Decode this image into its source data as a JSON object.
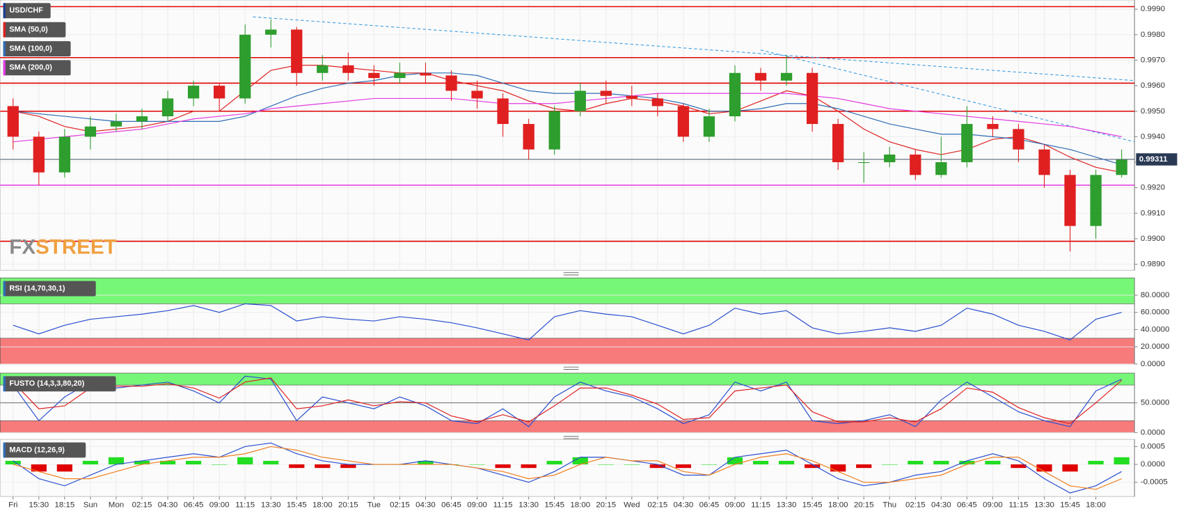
{
  "chart_data": [
    {
      "type": "candlestick",
      "title": "USD/CHF",
      "title_color": "#1a3d8f",
      "up_color": "#2e9e2e",
      "down_color": "#e02020",
      "watermark": [
        "FX",
        "STREET"
      ],
      "categories": [
        "Fri",
        "15:30",
        "18:15",
        "Sun",
        "Mon",
        "02:15",
        "04:30",
        "06:45",
        "09:00",
        "11:15",
        "13:30",
        "15:45",
        "18:00",
        "20:15",
        "Tue",
        "02:15",
        "04:30",
        "06:45",
        "09:00",
        "11:15",
        "13:30",
        "15:45",
        "18:00",
        "20:15",
        "Wed",
        "02:15",
        "04:30",
        "06:45",
        "09:00",
        "11:15",
        "13:30",
        "15:45",
        "18:00",
        "20:15",
        "Thu",
        "02:15",
        "04:30",
        "06:45",
        "09:00",
        "11:15",
        "13:30",
        "15:45",
        "18:00",
        null
      ],
      "open": [
        0.9952,
        0.994,
        0.9926,
        0.994,
        0.9944,
        0.9946,
        0.9948,
        0.9955,
        0.996,
        0.9955,
        0.998,
        0.9982,
        0.9965,
        0.9968,
        0.9965,
        0.9963,
        0.9965,
        0.9964,
        0.9958,
        0.9955,
        0.9945,
        0.9935,
        0.995,
        0.9958,
        0.9956,
        0.9955,
        0.9952,
        0.994,
        0.9948,
        0.9965,
        0.9962,
        0.9965,
        0.9945,
        0.993,
        0.993,
        0.9933,
        0.9925,
        0.993,
        0.9945,
        0.9943,
        0.9935,
        0.9925,
        0.9905,
        0.9925
      ],
      "high": [
        0.9955,
        0.9942,
        0.9943,
        0.9948,
        0.9949,
        0.9951,
        0.9958,
        0.9962,
        0.9961,
        0.9984,
        0.9986,
        0.9983,
        0.9972,
        0.9973,
        0.9968,
        0.9969,
        0.9969,
        0.9966,
        0.9962,
        0.9957,
        0.9947,
        0.9952,
        0.9961,
        0.9962,
        0.996,
        0.9957,
        0.9953,
        0.9951,
        0.9968,
        0.9967,
        0.9972,
        0.9967,
        0.9947,
        0.9934,
        0.9936,
        0.9935,
        0.994,
        0.9952,
        0.9948,
        0.9945,
        0.9937,
        0.9927,
        0.9927,
        0.9935
      ],
      "low": [
        0.9935,
        0.9921,
        0.9924,
        0.9935,
        0.9942,
        0.9943,
        0.9946,
        0.9952,
        0.995,
        0.9953,
        0.9975,
        0.996,
        0.9962,
        0.9962,
        0.996,
        0.9961,
        0.9961,
        0.9954,
        0.9951,
        0.994,
        0.9931,
        0.9933,
        0.9948,
        0.9953,
        0.9952,
        0.9948,
        0.9938,
        0.9938,
        0.9946,
        0.9958,
        0.996,
        0.9942,
        0.9927,
        0.9922,
        0.9928,
        0.9923,
        0.9924,
        0.9928,
        0.994,
        0.993,
        0.992,
        0.9895,
        0.99,
        0.9924
      ],
      "close": [
        0.994,
        0.9926,
        0.994,
        0.9944,
        0.9946,
        0.9948,
        0.9955,
        0.996,
        0.9955,
        0.998,
        0.9982,
        0.9965,
        0.9968,
        0.9965,
        0.9963,
        0.9965,
        0.9964,
        0.9958,
        0.9955,
        0.9945,
        0.9935,
        0.995,
        0.9958,
        0.9956,
        0.9955,
        0.9952,
        0.994,
        0.9948,
        0.9965,
        0.9962,
        0.9965,
        0.9945,
        0.993,
        0.993,
        0.9933,
        0.9925,
        0.993,
        0.9945,
        0.9943,
        0.9935,
        0.9925,
        0.9905,
        0.9925,
        0.9931
      ],
      "series": [
        {
          "name": "SMA (50,0)",
          "color": "#e02020",
          "values": [
            0.995,
            0.9948,
            0.9944,
            0.9942,
            0.9943,
            0.9944,
            0.9946,
            0.995,
            0.995,
            0.9958,
            0.9966,
            0.9968,
            0.9968,
            0.9967,
            0.9966,
            0.9965,
            0.9965,
            0.9962,
            0.996,
            0.9958,
            0.9954,
            0.9951,
            0.995,
            0.9953,
            0.9955,
            0.9954,
            0.9952,
            0.9949,
            0.995,
            0.9954,
            0.9958,
            0.9956,
            0.995,
            0.9943,
            0.9938,
            0.9935,
            0.9933,
            0.9935,
            0.9939,
            0.994,
            0.9937,
            0.9932,
            0.9928,
            0.9926
          ]
        },
        {
          "name": "SMA (100,0)",
          "color": "#2f6db5",
          "values": [
            0.995,
            0.9949,
            0.9948,
            0.9947,
            0.9946,
            0.9946,
            0.9946,
            0.9946,
            0.9946,
            0.9948,
            0.9952,
            0.9956,
            0.9959,
            0.9961,
            0.9962,
            0.9964,
            0.9965,
            0.9965,
            0.9964,
            0.9961,
            0.9958,
            0.9957,
            0.9957,
            0.9957,
            0.9956,
            0.9955,
            0.9953,
            0.995,
            0.995,
            0.9951,
            0.9953,
            0.9953,
            0.9951,
            0.9948,
            0.9945,
            0.9943,
            0.9941,
            0.9941,
            0.994,
            0.9939,
            0.9937,
            0.9935,
            0.9932,
            0.9929
          ]
        },
        {
          "name": "SMA (200,0)",
          "color": "#e23be2",
          "values": [
            0.9938,
            0.9939,
            0.994,
            0.9941,
            0.9942,
            0.9943,
            0.9945,
            0.9947,
            0.9948,
            0.9949,
            0.9951,
            0.9952,
            0.9953,
            0.9954,
            0.9955,
            0.9955,
            0.9955,
            0.9955,
            0.9954,
            0.9953,
            0.9953,
            0.9953,
            0.9954,
            0.9955,
            0.9956,
            0.9957,
            0.9957,
            0.9957,
            0.9957,
            0.9957,
            0.9957,
            0.9956,
            0.9955,
            0.9953,
            0.9951,
            0.995,
            0.9949,
            0.9948,
            0.9947,
            0.9946,
            0.9945,
            0.9944,
            0.9942,
            0.994
          ]
        }
      ],
      "levels": [
        {
          "value": 0.9991,
          "color": "#e00000"
        },
        {
          "value": 0.9971,
          "color": "#e00000"
        },
        {
          "value": 0.9961,
          "color": "#e00000"
        },
        {
          "value": 0.995,
          "color": "#e00000"
        },
        {
          "value": 0.9921,
          "color": "#e23be2"
        },
        {
          "value": 0.9899,
          "color": "#e00000"
        }
      ],
      "trendlines": [
        {
          "x": [
            9.3,
            43.5
          ],
          "y": [
            0.9987,
            0.9962
          ],
          "color": "#3b9de0"
        },
        {
          "x": [
            29,
            43.5
          ],
          "y": [
            0.9974,
            0.9938
          ],
          "color": "#3b9de0"
        }
      ],
      "last_price": 0.99311,
      "ylim": [
        0.98876,
        0.99936
      ],
      "yticks": [
        {
          "value": 0.989,
          "label": "0.9890"
        },
        {
          "value": 0.99,
          "label": "0.9900"
        },
        {
          "value": 0.991,
          "label": "0.9910"
        },
        {
          "value": 0.992,
          "label": "0.9920"
        },
        {
          "value": 0.993,
          "label": "0.9930"
        },
        {
          "value": 0.994,
          "label": "0.9940"
        },
        {
          "value": 0.995,
          "label": "0.9950"
        },
        {
          "value": 0.996,
          "label": "0.9960"
        },
        {
          "value": 0.997,
          "label": "0.9970"
        },
        {
          "value": 0.998,
          "label": "0.9980"
        },
        {
          "value": 0.999,
          "label": "0.9990"
        }
      ],
      "grid": true
    },
    {
      "type": "line",
      "title": "RSI (14,70,30,1)",
      "title_color": "#2f6db5",
      "bands": [
        {
          "from": 70,
          "to": 100,
          "color": "#77f777"
        },
        {
          "from": 0,
          "to": 30,
          "color": "#f77b7b"
        }
      ],
      "series": [
        {
          "name": "RSI",
          "color": "#2a4fd0",
          "values": [
            45,
            35,
            45,
            52,
            55,
            58,
            62,
            68,
            60,
            70,
            68,
            50,
            55,
            52,
            50,
            55,
            52,
            48,
            42,
            35,
            28,
            55,
            62,
            58,
            55,
            45,
            35,
            45,
            65,
            58,
            62,
            42,
            35,
            38,
            42,
            38,
            45,
            65,
            58,
            45,
            38,
            28,
            52,
            60
          ]
        }
      ],
      "ylim": [
        0,
        100
      ],
      "yticks": [
        {
          "value": 0,
          "label": "0.0000"
        },
        {
          "value": 20,
          "label": "20.0000"
        },
        {
          "value": 40,
          "label": "40.0000"
        },
        {
          "value": 60,
          "label": "60.0000"
        },
        {
          "value": 80,
          "label": "80.0000"
        }
      ],
      "grid": true
    },
    {
      "type": "line",
      "title": "FUSTO (14,3,3,80,20)",
      "title_color": "#2f6db5",
      "bands": [
        {
          "from": 80,
          "to": 100,
          "color": "#77f777"
        },
        {
          "from": 0,
          "to": 20,
          "color": "#f77b7b"
        }
      ],
      "series": [
        {
          "name": "%K",
          "color": "#2a4fd0",
          "values": [
            80,
            20,
            60,
            85,
            75,
            80,
            85,
            70,
            50,
            95,
            90,
            20,
            60,
            50,
            40,
            60,
            45,
            20,
            15,
            40,
            10,
            60,
            85,
            70,
            60,
            40,
            15,
            30,
            85,
            70,
            85,
            20,
            15,
            20,
            30,
            10,
            55,
            85,
            60,
            35,
            20,
            10,
            70,
            90
          ]
        },
        {
          "name": "%D",
          "color": "#e02020",
          "values": [
            85,
            40,
            45,
            75,
            78,
            78,
            82,
            75,
            58,
            85,
            92,
            40,
            45,
            55,
            45,
            52,
            50,
            28,
            18,
            30,
            18,
            45,
            75,
            75,
            63,
            48,
            22,
            25,
            70,
            75,
            80,
            35,
            18,
            18,
            25,
            18,
            40,
            75,
            68,
            42,
            25,
            15,
            50,
            88
          ]
        }
      ],
      "ylim": [
        0,
        100
      ],
      "yticks": [
        {
          "value": 0,
          "label": "0.0000"
        },
        {
          "value": 50,
          "label": "50.0000"
        }
      ],
      "grid": true
    },
    {
      "type": "combo",
      "title": "MACD (12,26,9)",
      "title_color": "#2f6db5",
      "series": [
        {
          "name": "Histogram",
          "type": "bar",
          "color": "#22dd22",
          "negative_color": "#e00000",
          "values": [
            0.0001,
            -0.0002,
            -0.0002,
            0.0001,
            0.0002,
            0.0001,
            0.0001,
            0.0001,
            0,
            0.0002,
            0.0001,
            -0.0001,
            -0.0001,
            -0.0001,
            0,
            0,
            0.0001,
            0,
            0,
            -0.0001,
            -0.0001,
            0.0001,
            0.0002,
            0,
            0,
            -0.0001,
            -0.0001,
            0,
            0.0002,
            0.0001,
            0.0001,
            -0.0001,
            -0.0002,
            -0.0001,
            0,
            0.0001,
            0.0001,
            0.0001,
            0.0001,
            -0.0001,
            -0.0002,
            -0.0002,
            0.0001,
            0.0002
          ]
        },
        {
          "name": "MACD",
          "type": "line",
          "color": "#2a4fd0",
          "values": [
            0.0001,
            -0.0004,
            -0.0006,
            -0.0003,
            0,
            0.0001,
            0.0002,
            0.0003,
            0.0002,
            0.0005,
            0.0006,
            0.0003,
            0.0001,
            0,
            0,
            0,
            0.0001,
            0,
            -0.0001,
            -0.0003,
            -0.0005,
            -0.0002,
            0.0002,
            0.0002,
            0.0001,
            0,
            -0.0003,
            -0.0003,
            0.0002,
            0.0003,
            0.0004,
            0,
            -0.0004,
            -0.0006,
            -0.0005,
            -0.0003,
            -0.0002,
            0.0001,
            0.0003,
            0.0001,
            -0.0004,
            -0.0008,
            -0.0006,
            -0.0002
          ]
        },
        {
          "name": "Signal",
          "type": "line",
          "color": "#f07f20",
          "values": [
            0,
            -0.0002,
            -0.0004,
            -0.0004,
            -0.0002,
            0,
            0.0001,
            0.0002,
            0.0002,
            0.0003,
            0.0005,
            0.0004,
            0.0002,
            0.0001,
            0,
            0,
            0,
            0,
            -0.0001,
            -0.0002,
            -0.0004,
            -0.0003,
            0,
            0.0002,
            0.0001,
            0.0001,
            -0.0002,
            -0.0003,
            0,
            0.0002,
            0.0003,
            0.0001,
            -0.0002,
            -0.0005,
            -0.0005,
            -0.0004,
            -0.0003,
            0,
            0.0002,
            0.0002,
            -0.0002,
            -0.0006,
            -0.0007,
            -0.0004
          ]
        }
      ],
      "ylim": [
        -0.0009,
        0.0007
      ],
      "yticks": [
        {
          "value": -0.0005,
          "label": "-0.0005"
        },
        {
          "value": 0,
          "label": "0.0000"
        },
        {
          "value": 0.0005,
          "label": "0.0005"
        }
      ],
      "grid": true
    }
  ]
}
